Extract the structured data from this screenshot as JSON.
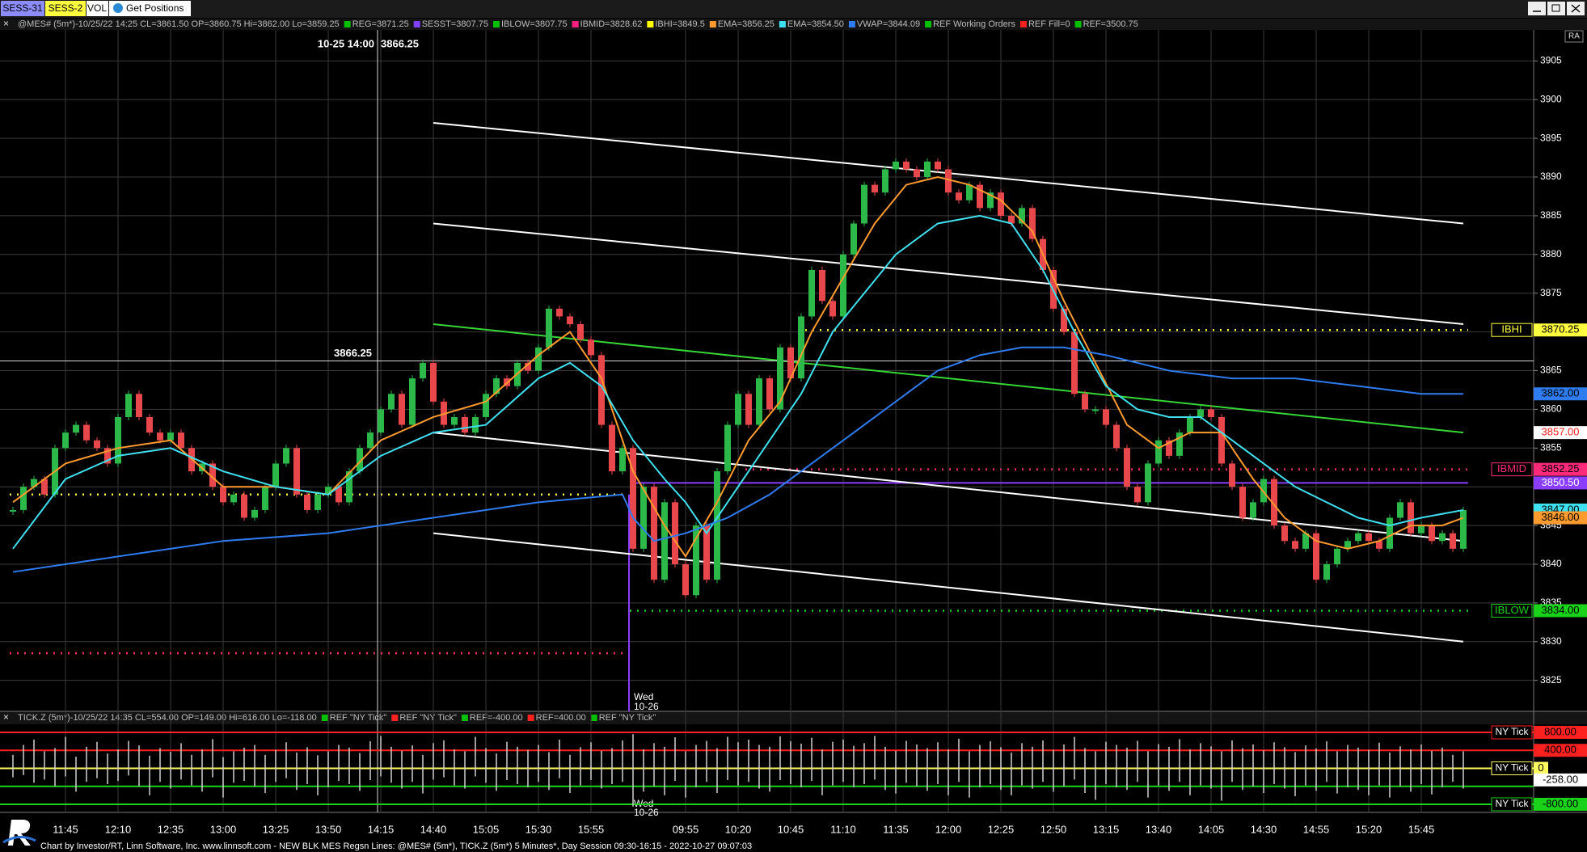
{
  "toolbar": [
    "SESS-31",
    "SESS-2",
    "VOL",
    "Get Positions"
  ],
  "footer": "Chart by Investor/RT, Linn Software, Inc. www.linnsoft.com - NEW BLK MES Regsn Lines: @MES# (5m*), TICK.Z (5m*) 5 Minutes*, Day Session 09:30-16:15 - 2022-10-27 09:07:03",
  "chart_data": [
    {
      "type": "candlestick",
      "title": "@MES# (5m*)-10/25/22 14:25 CL=3861.50 OP=3860.75 Hi=3862.00 Lo=3859.25",
      "legend_before": [
        {
          "text": "REG=3871.25",
          "color": "#00c000"
        },
        {
          "text": "SESST=3807.75",
          "color": "#8040ff"
        },
        {
          "text": "IBLOW=3807.75",
          "color": "#00c000"
        },
        {
          "text": "IBMID=3828.62",
          "color": "#ff2080"
        },
        {
          "text": "IBHI=3849.5",
          "color": "#ffff00"
        }
      ],
      "legend_after": [
        {
          "text": "REF Working Orders",
          "color": "#00c000"
        },
        {
          "text": "REF Fill=0",
          "color": "#ff2020"
        },
        {
          "text": "REF=3500.75",
          "color": "#00c000"
        }
      ],
      "axis_button": "RA",
      "ylim": [
        3821,
        3909
      ],
      "yticks": [
        3825,
        3830,
        3835,
        3840,
        3845,
        3850,
        3855,
        3860,
        3865,
        3870,
        3875,
        3880,
        3885,
        3890,
        3895,
        3900,
        3905
      ],
      "grid": true,
      "up_color": "#2db84a",
      "down_color": "#e8474b",
      "categories": [
        null,
        null,
        null,
        null,
        null,
        "11:45",
        null,
        null,
        null,
        null,
        "12:10",
        null,
        null,
        null,
        null,
        "12:35",
        null,
        null,
        null,
        null,
        "13:00",
        null,
        null,
        null,
        null,
        "13:25",
        null,
        null,
        null,
        null,
        "13:50",
        null,
        null,
        null,
        null,
        "14:15",
        null,
        null,
        null,
        null,
        "14:40",
        null,
        null,
        null,
        null,
        "15:05",
        null,
        null,
        null,
        null,
        "15:30",
        null,
        null,
        null,
        null,
        "15:55",
        null,
        null,
        null,
        null,
        null,
        null,
        null,
        null,
        "09:55",
        null,
        null,
        null,
        null,
        "10:20",
        null,
        null,
        null,
        null,
        "10:45",
        null,
        null,
        null,
        null,
        "11:10",
        null,
        null,
        null,
        null,
        "11:35",
        null,
        null,
        null,
        null,
        "12:00",
        null,
        null,
        null,
        null,
        "12:25",
        null,
        null,
        null,
        null,
        "12:50",
        null,
        null,
        null,
        null,
        "13:15",
        null,
        null,
        null,
        null,
        "13:40",
        null,
        null,
        null,
        null,
        "14:05",
        null,
        null,
        null,
        null,
        "14:30",
        null,
        null,
        null,
        null,
        "14:55",
        null,
        null,
        null,
        null,
        "15:20",
        null,
        null,
        null,
        null,
        "15:45",
        null,
        null,
        null,
        null
      ],
      "values": [
        3847,
        3850,
        3851,
        3849,
        3855,
        3857,
        3858,
        3856,
        3855,
        3853,
        3859,
        3862,
        3859,
        3857,
        3856,
        3857,
        3855,
        3852,
        3853,
        3850,
        3848,
        3849,
        3846,
        3847,
        3850,
        3853,
        3855,
        3849,
        3847,
        3849,
        3850,
        3848,
        3852,
        3855,
        3857,
        3860,
        3862,
        3858,
        3864,
        3866,
        3861,
        3858,
        3859,
        3857,
        3859,
        3862,
        3864,
        3863,
        3866,
        3865,
        3868,
        3873,
        3872,
        3871,
        3869,
        3867,
        3858,
        3852,
        3855,
        3842,
        3850,
        3838,
        3848,
        3840,
        3836,
        3845,
        3838,
        3852,
        3858,
        3862,
        3858,
        3864,
        3860,
        3868,
        3864,
        3872,
        3878,
        3874,
        3872,
        3880,
        3884,
        3889,
        3888,
        3891,
        3892,
        3891,
        3890,
        3892,
        3891,
        3888,
        3887,
        3889,
        3886,
        3888,
        3885,
        3884,
        3886,
        3882,
        3878,
        3873,
        3870,
        3862,
        3860,
        3860,
        3858,
        3855,
        3850,
        3848,
        3853,
        3856,
        3854,
        3857,
        3859,
        3860,
        3859,
        3853,
        3850,
        3846,
        3848,
        3851,
        3845,
        3843,
        3842,
        3844,
        3838,
        3840,
        3842,
        3843,
        3844,
        3843,
        3842,
        3846,
        3848,
        3844,
        3845,
        3843,
        3844,
        3842,
        3847
      ],
      "series": [
        {
          "name": "EMA=3856.25",
          "color": "#ff9a2e",
          "x": [
            0,
            5,
            10,
            15,
            20,
            25,
            30,
            35,
            40,
            45,
            50,
            53,
            56,
            59,
            62,
            64,
            67,
            70,
            73,
            76,
            79,
            82,
            85,
            88,
            91,
            94,
            97,
            100,
            103,
            106,
            109,
            112,
            115,
            118,
            121,
            124,
            127,
            130,
            133,
            136,
            138
          ],
          "values": [
            3848,
            3853,
            3855,
            3856,
            3850,
            3850,
            3849,
            3856,
            3859,
            3861,
            3867,
            3870,
            3864,
            3852,
            3845,
            3841,
            3848,
            3856,
            3861,
            3870,
            3877,
            3884,
            3889,
            3890,
            3889,
            3887,
            3883,
            3874,
            3866,
            3858,
            3855,
            3857,
            3857,
            3851,
            3846,
            3843,
            3842,
            3843,
            3845,
            3845,
            3846
          ]
        },
        {
          "name": "EMA=3854.50",
          "color": "#3fe0f0",
          "x": [
            0,
            5,
            10,
            15,
            20,
            25,
            30,
            35,
            40,
            45,
            50,
            53,
            56,
            59,
            62,
            64,
            66,
            69,
            72,
            75,
            78,
            81,
            84,
            88,
            92,
            95,
            98,
            101,
            104,
            107,
            110,
            113,
            116,
            119,
            122,
            125,
            128,
            131,
            134,
            138
          ],
          "values": [
            3842,
            3851,
            3854,
            3855,
            3852,
            3850,
            3849,
            3854,
            3857,
            3858,
            3864,
            3866,
            3863,
            3856,
            3851,
            3848,
            3844,
            3850,
            3856,
            3862,
            3870,
            3875,
            3880,
            3884,
            3885,
            3884,
            3878,
            3870,
            3863,
            3860,
            3859,
            3859,
            3856,
            3853,
            3850,
            3848,
            3846,
            3845,
            3846,
            3847
          ]
        },
        {
          "name": "VWAP=3844.09",
          "color": "#2f7cf0",
          "x": [
            0,
            10,
            20,
            30,
            40,
            50,
            58,
            59,
            61,
            64,
            68,
            72,
            76,
            80,
            84,
            88,
            92,
            96,
            100,
            104,
            110,
            116,
            122,
            128,
            134,
            138
          ],
          "values": [
            3839,
            3841,
            3843,
            3844,
            3846,
            3848,
            3849,
            3846,
            3843,
            3844,
            3846,
            3849,
            3853,
            3857,
            3861,
            3865,
            3867,
            3868,
            3868,
            3867,
            3865,
            3864,
            3864,
            3863,
            3862,
            3862
          ]
        }
      ],
      "channel_lines": [
        {
          "color": "#ffffff",
          "x": [
            40,
            138
          ],
          "values": [
            3897,
            3884
          ]
        },
        {
          "color": "#ffffff",
          "x": [
            40,
            138
          ],
          "values": [
            3884,
            3871
          ]
        },
        {
          "color": "#36d636",
          "x": [
            40,
            138
          ],
          "values": [
            3871,
            3857
          ]
        },
        {
          "color": "#ffffff",
          "x": [
            40,
            138
          ],
          "values": [
            3857,
            3843
          ]
        },
        {
          "color": "#ffffff",
          "x": [
            40,
            138
          ],
          "values": [
            3844,
            3830
          ]
        }
      ],
      "levels": [
        {
          "label": "IBHI",
          "value": 3870.25,
          "value_label": "3870.25",
          "color": "#ffff40",
          "style": "dotted",
          "x_start": 75
        },
        {
          "label": "IBMID",
          "value": 3852.25,
          "value_label": "3852.25",
          "color": "#ff2a7a",
          "style": "dotted",
          "x_start": 70
        },
        {
          "value": 3850.5,
          "value_label": "3850.50",
          "color": "#8a3cff",
          "text_color": "#ffffff",
          "style": "solid",
          "x_start": 59
        },
        {
          "label": "IBLOW",
          "value": 3834.0,
          "value_label": "3834.00",
          "color": "#19d219",
          "style": "dotted",
          "x_start": 59
        },
        {
          "value": 3849,
          "color": "#ffff40",
          "style": "dotted",
          "x_start": 0,
          "x_end": 58
        },
        {
          "value": 3828.5,
          "color": "#ff2a7a",
          "style": "dotted",
          "x_start": 0,
          "x_end": 58
        }
      ],
      "axis_markers": [
        {
          "value": 3862.0,
          "value_label": "3862.00",
          "color": "#2f7cf0"
        },
        {
          "value": 3857.0,
          "value_label": "3857.00",
          "color": "#ffffff",
          "text_color": "#ff2020"
        },
        {
          "value": 3847.0,
          "value_label": "3847.00",
          "color": "#3fe0f0"
        },
        {
          "value": 3846.0,
          "value_label": "3846.00",
          "color": "#ff9a2e"
        }
      ],
      "crosshair": {
        "x": 35,
        "time": "10-25 14:00",
        "price": 3866.25,
        "price_label": "3866.25"
      },
      "session_break": {
        "x": 59,
        "day": "Wed",
        "date": "10-26"
      }
    },
    {
      "type": "range-bar",
      "title": "TICK.Z (5m*)-10/25/22 14:35 CL=554.00 OP=149.00 Hi=616.00 Lo=-118.00",
      "legend_before": [
        {
          "text": "REF \"NY Tick\"",
          "color": "#00c000"
        },
        {
          "text": "REF \"NY Tick\"",
          "color": "#ff2020"
        },
        {
          "text": "REF=-400.00",
          "color": "#00c000"
        },
        {
          "text": "REF=400.00",
          "color": "#ff2020"
        },
        {
          "text": "REF \"NY Tick\"",
          "color": "#00c000"
        }
      ],
      "ylim": [
        -980,
        980
      ],
      "color": "#d0d0d0",
      "high": [
        300,
        520,
        640,
        380,
        450,
        700,
        260,
        480,
        590,
        330,
        420,
        610,
        510,
        280,
        450,
        370,
        560,
        300,
        420,
        650,
        250,
        380,
        460,
        520,
        300,
        410,
        580,
        350,
        470,
        290,
        380,
        520,
        460,
        340,
        600,
        720,
        480,
        390,
        510,
        300,
        560,
        620,
        420,
        380,
        700,
        450,
        330,
        590,
        480,
        410,
        520,
        360,
        640,
        300,
        470,
        580,
        390,
        450,
        620,
        760,
        420,
        560,
        480,
        690,
        380,
        520,
        610,
        450,
        700,
        580,
        640,
        520,
        480,
        710,
        600,
        550,
        680,
        420,
        590,
        640,
        500,
        560,
        720,
        480,
        390,
        610,
        530,
        450,
        580,
        420,
        660,
        380,
        520,
        600,
        470,
        350,
        560,
        480,
        620,
        410,
        530,
        700,
        450,
        380,
        590,
        520,
        460,
        610,
        380,
        540,
        480,
        650,
        420,
        560,
        490,
        380,
        620,
        450,
        530,
        400,
        580,
        470,
        360,
        510,
        440,
        600,
        380,
        520,
        460,
        410,
        570,
        350,
        490,
        420,
        530,
        390,
        460,
        300,
        380
      ],
      "low": [
        -200,
        -150,
        -320,
        -250,
        -400,
        -180,
        -520,
        -300,
        -220,
        -350,
        -280,
        -160,
        -400,
        -600,
        -300,
        -450,
        -250,
        -380,
        -520,
        -200,
        -650,
        -320,
        -280,
        -400,
        -550,
        -300,
        -220,
        -480,
        -350,
        -600,
        -420,
        -280,
        -350,
        -500,
        -260,
        -180,
        -320,
        -450,
        -300,
        -560,
        -250,
        -200,
        -380,
        -450,
        -180,
        -320,
        -500,
        -260,
        -350,
        -420,
        -300,
        -480,
        -220,
        -550,
        -380,
        -260,
        -450,
        -350,
        -300,
        -850,
        -520,
        -400,
        -600,
        -280,
        -650,
        -420,
        -300,
        -550,
        -260,
        -380,
        -300,
        -450,
        -520,
        -260,
        -350,
        -420,
        -280,
        -600,
        -380,
        -300,
        -420,
        -350,
        -250,
        -480,
        -560,
        -320,
        -400,
        -500,
        -350,
        -600,
        -300,
        -650,
        -420,
        -350,
        -480,
        -600,
        -380,
        -450,
        -300,
        -520,
        -400,
        -250,
        -550,
        -700,
        -350,
        -420,
        -480,
        -300,
        -650,
        -380,
        -500,
        -300,
        -600,
        -380,
        -450,
        -720,
        -300,
        -480,
        -400,
        -550,
        -350,
        -450,
        -620,
        -380,
        -500,
        -300,
        -560,
        -420,
        -480,
        -600,
        -380,
        -650,
        -400,
        -520,
        -350,
        -580,
        -420,
        -300,
        -450
      ],
      "levels": [
        {
          "name": "NY Tick",
          "value": 800,
          "value_label": "800.00",
          "color": "#ff2020"
        },
        {
          "value": 400,
          "value_label": "400.00",
          "color": "#ff2020"
        },
        {
          "name": "NY Tick",
          "value": 0,
          "color": "#ffff60"
        },
        {
          "value": -258,
          "value_label": "-258.00",
          "color": "#ffffff",
          "line": false
        },
        {
          "value": -400,
          "color": "#19d219"
        },
        {
          "name": "NY Tick",
          "value": -800,
          "value_label": "-800.00",
          "color": "#19d219"
        }
      ]
    }
  ]
}
